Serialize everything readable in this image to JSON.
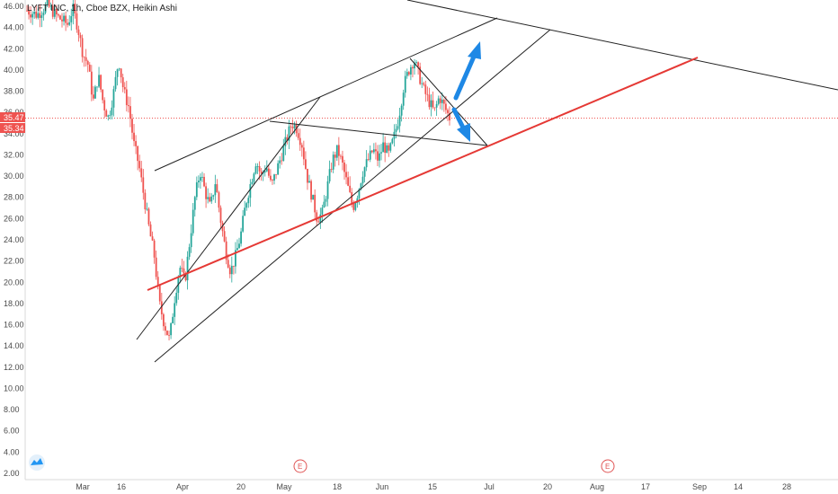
{
  "header": {
    "title": "LYFT INC, 1h, Cboe BZX, Heikin Ashi"
  },
  "colors": {
    "up": "#26a69a",
    "down": "#ef5350",
    "support": "#e53935",
    "trendline": "#222222",
    "arrow": "#1e88e5",
    "price_line": "#ef5350",
    "tag_bg": "#ef5350",
    "earnings": "#e05555"
  },
  "price_tags": {
    "last": "35.47",
    "prev": "35.34"
  },
  "earnings_markers": [
    "E",
    "E"
  ],
  "chart_data": {
    "type": "candlestick",
    "title": "LYFT INC, 1h, Cboe BZX, Heikin Ashi",
    "y_axis": {
      "ylim": [
        2,
        47
      ],
      "ticks": [
        "46.00",
        "44.00",
        "42.00",
        "40.00",
        "38.00",
        "36.00",
        "34.00",
        "32.00",
        "30.00",
        "28.00",
        "26.00",
        "24.00",
        "22.00",
        "20.00",
        "18.00",
        "16.00",
        "14.00",
        "12.00",
        "10.00",
        "8.00",
        "6.00",
        "4.00",
        "2.00"
      ]
    },
    "x_axis": {
      "ticks": [
        "Mar",
        "16",
        "Apr",
        "20",
        "May",
        "18",
        "Jun",
        "15",
        "Jul",
        "20",
        "Aug",
        "17",
        "Sep",
        "14",
        "28"
      ]
    },
    "last_price": 35.47,
    "prev_close": 35.34,
    "price_path": [
      [
        0,
        45.6
      ],
      [
        2,
        45.2
      ],
      [
        4,
        46.1
      ],
      [
        6,
        45.0
      ],
      [
        8,
        44.3
      ],
      [
        9,
        45.8
      ],
      [
        10,
        44.0
      ],
      [
        11,
        41.5
      ],
      [
        12,
        40.5
      ],
      [
        13,
        37.0
      ],
      [
        14,
        39.5
      ],
      [
        15,
        36.8
      ],
      [
        16,
        35.5
      ],
      [
        17,
        37.8
      ],
      [
        18,
        41.0
      ],
      [
        19,
        38.0
      ],
      [
        20,
        36.5
      ],
      [
        21,
        33.0
      ],
      [
        22,
        31.0
      ],
      [
        23,
        28.0
      ],
      [
        24,
        25.0
      ],
      [
        25,
        22.5
      ],
      [
        26,
        18.0
      ],
      [
        27,
        16.0
      ],
      [
        28,
        14.6
      ],
      [
        29,
        18.5
      ],
      [
        30,
        21.5
      ],
      [
        31,
        20.0
      ],
      [
        32,
        24.0
      ],
      [
        33,
        28.0
      ],
      [
        34,
        30.5
      ],
      [
        35,
        28.5
      ],
      [
        36,
        27.0
      ],
      [
        37,
        29.5
      ],
      [
        38,
        26.0
      ],
      [
        39,
        23.0
      ],
      [
        40,
        21.0
      ],
      [
        41,
        22.5
      ],
      [
        42,
        24.5
      ],
      [
        43,
        27.5
      ],
      [
        44,
        29.5
      ],
      [
        45,
        31.5
      ],
      [
        46,
        30.0
      ],
      [
        47,
        31.0
      ],
      [
        48,
        29.0
      ],
      [
        49,
        30.5
      ],
      [
        50,
        32.0
      ],
      [
        51,
        33.5
      ],
      [
        52,
        35.0
      ],
      [
        53,
        34.5
      ],
      [
        54,
        33.0
      ],
      [
        55,
        30.0
      ],
      [
        56,
        28.0
      ],
      [
        57,
        26.0
      ],
      [
        58,
        26.5
      ],
      [
        59,
        29.0
      ],
      [
        60,
        31.5
      ],
      [
        61,
        32.5
      ],
      [
        62,
        31.0
      ],
      [
        63,
        29.0
      ],
      [
        64,
        27.0
      ],
      [
        65,
        28.5
      ],
      [
        66,
        30.5
      ],
      [
        67,
        31.5
      ],
      [
        68,
        32.5
      ],
      [
        69,
        31.5
      ],
      [
        70,
        33.0
      ],
      [
        71,
        32.0
      ],
      [
        72,
        33.5
      ],
      [
        73,
        35.5
      ],
      [
        74,
        38.5
      ],
      [
        75,
        40.0
      ],
      [
        76,
        41.0
      ],
      [
        77,
        39.5
      ],
      [
        78,
        38.0
      ],
      [
        79,
        37.0
      ],
      [
        80,
        36.0
      ],
      [
        81,
        37.5
      ],
      [
        82,
        36.5
      ],
      [
        83,
        35.5
      ]
    ],
    "trendlines": [
      {
        "from": [
          "Mar 18",
          14.6
        ],
        "to": [
          "May 11",
          37.2
        ]
      },
      {
        "from": [
          "Mar 21",
          12.5
        ],
        "to": [
          "Jul 10",
          44.0
        ]
      },
      {
        "from": [
          "Mar 23",
          30.5
        ],
        "to": [
          "Jul 01",
          45.0
        ]
      },
      {
        "from": [
          "Apr 27",
          35.0
        ],
        "to": [
          "Jul 01",
          32.8
        ]
      },
      {
        "from": [
          "Jun 10",
          41.3
        ],
        "to": [
          "Jul 01",
          32.8
        ]
      },
      {
        "from": [
          "Feb 19",
          48.5
        ],
        "to": [
          "Sep 30",
          38.1
        ]
      }
    ],
    "support_line": {
      "from": [
        "Mar 20",
        19.2
      ],
      "to": [
        "Aug 31",
        41.2
      ]
    },
    "arrows": [
      "up",
      "down"
    ]
  }
}
